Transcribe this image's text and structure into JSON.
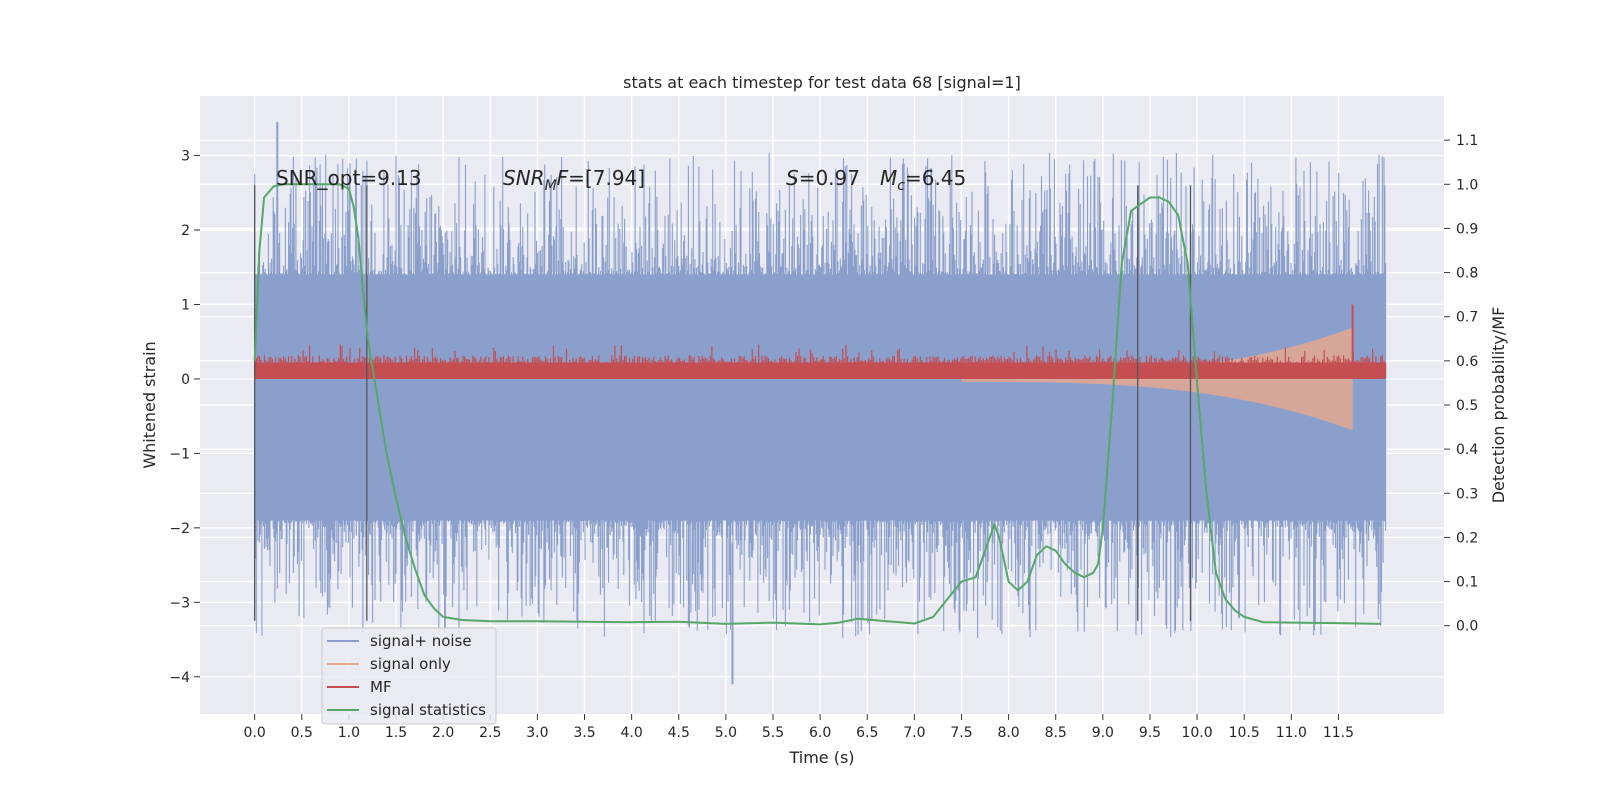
{
  "chart_data": {
    "type": "line",
    "title": "stats at each timestep for test data 68 [signal=1]",
    "xlabel": "Time (s)",
    "ylabel": "Whitened strain",
    "y2label": "Detection probability/MF",
    "xlim": [
      -0.58,
      12.62
    ],
    "ylim": [
      -4.5,
      3.8
    ],
    "y2lim": [
      -0.2,
      1.2
    ],
    "grid": true,
    "legend_position": "bottom-left",
    "x_ticks": [
      0.0,
      0.5,
      1.0,
      1.5,
      2.0,
      2.5,
      3.0,
      3.5,
      4.0,
      4.5,
      5.0,
      5.5,
      6.0,
      6.5,
      7.0,
      7.5,
      8.0,
      8.5,
      9.0,
      9.5,
      10.0,
      10.5,
      11.0,
      11.5
    ],
    "x_tick_labels": [
      "0.0",
      "0.5",
      "1.0",
      "1.5",
      "2.0",
      "2.5",
      "3.0",
      "3.5",
      "4.0",
      "4.5",
      "5.0",
      "5.5",
      "6.0",
      "6.5",
      "7.0",
      "7.5",
      "8.0",
      "8.5",
      "9.0",
      "9.5",
      "10.0",
      "10.5",
      "11.0",
      "11.5"
    ],
    "y_ticks": [
      -4,
      -3,
      -2,
      -1,
      0,
      1,
      2,
      3
    ],
    "y_tick_labels": [
      "−4",
      "−3",
      "−2",
      "−1",
      "0",
      "1",
      "2",
      "3"
    ],
    "y2_ticks": [
      0.0,
      0.1,
      0.2,
      0.3,
      0.4,
      0.5,
      0.6,
      0.7,
      0.8,
      0.9,
      1.0,
      1.1
    ],
    "y2_tick_labels": [
      "0.0",
      "0.1",
      "0.2",
      "0.3",
      "0.4",
      "0.5",
      "0.6",
      "0.7",
      "0.8",
      "0.9",
      "1.0",
      "1.1"
    ],
    "annotations": {
      "snr_opt": "SNR_opt=9.13",
      "snr_mf_var": "SNR",
      "snr_mf_sub": "M",
      "snr_mf_var2": "F",
      "snr_mf_val": "=[7.94]",
      "s_var": "S",
      "s_val": "=0.97",
      "mc_var": "M",
      "mc_sub": "c",
      "mc_val": "=6.45"
    },
    "noise_band": {
      "x_start": 0.0,
      "x_end": 12.0,
      "upper_typical": 1.4,
      "lower_typical": -1.9,
      "max": 3.45,
      "min": -4.1
    },
    "signal_only": {
      "x_start": 7.5,
      "x_end": 11.65,
      "amplitude_end": 0.65
    },
    "mf_band": {
      "x_start": 0.0,
      "x_end": 12.0,
      "lower": 0.0,
      "upper_typical": 0.3,
      "spike": {
        "x": 11.65,
        "value": 1.0
      }
    },
    "vertical_lines": [
      {
        "x": 0.0,
        "y_top": 2.6,
        "y_bottom": -3.25
      },
      {
        "x": 1.19,
        "y_top": 2.6,
        "y_bottom": -3.25
      },
      {
        "x": 9.37,
        "y_top": 2.6,
        "y_bottom": -3.25
      },
      {
        "x": 9.93,
        "y_top": 2.6,
        "y_bottom": -3.25
      }
    ],
    "signal_statistics": {
      "x": [
        0.0,
        0.05,
        0.1,
        0.2,
        0.3,
        0.5,
        0.7,
        0.9,
        1.0,
        1.05,
        1.1,
        1.15,
        1.2,
        1.3,
        1.4,
        1.5,
        1.6,
        1.7,
        1.8,
        1.9,
        2.0,
        2.2,
        2.5,
        3.0,
        3.5,
        4.0,
        4.5,
        5.0,
        5.5,
        6.0,
        6.2,
        6.4,
        6.6,
        7.0,
        7.2,
        7.35,
        7.5,
        7.65,
        7.8,
        7.85,
        7.9,
        8.0,
        8.1,
        8.2,
        8.3,
        8.4,
        8.5,
        8.6,
        8.7,
        8.8,
        8.9,
        8.95,
        9.0,
        9.1,
        9.2,
        9.3,
        9.4,
        9.5,
        9.6,
        9.7,
        9.8,
        9.9,
        10.0,
        10.1,
        10.2,
        10.3,
        10.4,
        10.5,
        10.7,
        11.0,
        11.5,
        11.95
      ],
      "values": [
        0.6,
        0.85,
        0.97,
        0.995,
        1.0,
        1.0,
        1.0,
        1.0,
        0.99,
        0.95,
        0.88,
        0.76,
        0.65,
        0.52,
        0.39,
        0.29,
        0.2,
        0.13,
        0.07,
        0.04,
        0.02,
        0.013,
        0.01,
        0.01,
        0.009,
        0.008,
        0.009,
        0.004,
        0.007,
        0.003,
        0.007,
        0.016,
        0.012,
        0.005,
        0.02,
        0.06,
        0.1,
        0.11,
        0.2,
        0.23,
        0.2,
        0.1,
        0.08,
        0.1,
        0.16,
        0.18,
        0.17,
        0.14,
        0.12,
        0.11,
        0.12,
        0.14,
        0.22,
        0.5,
        0.82,
        0.94,
        0.955,
        0.97,
        0.97,
        0.96,
        0.93,
        0.82,
        0.55,
        0.3,
        0.12,
        0.06,
        0.035,
        0.02,
        0.008,
        0.007,
        0.006,
        0.004
      ]
    },
    "series": [
      {
        "name": "signal+ noise",
        "color": "#8a9fcb"
      },
      {
        "name": "signal only",
        "color": "#e8a98c"
      },
      {
        "name": "MF",
        "color": "#c44e52"
      },
      {
        "name": "signal statistics",
        "color": "#55a868"
      }
    ]
  }
}
